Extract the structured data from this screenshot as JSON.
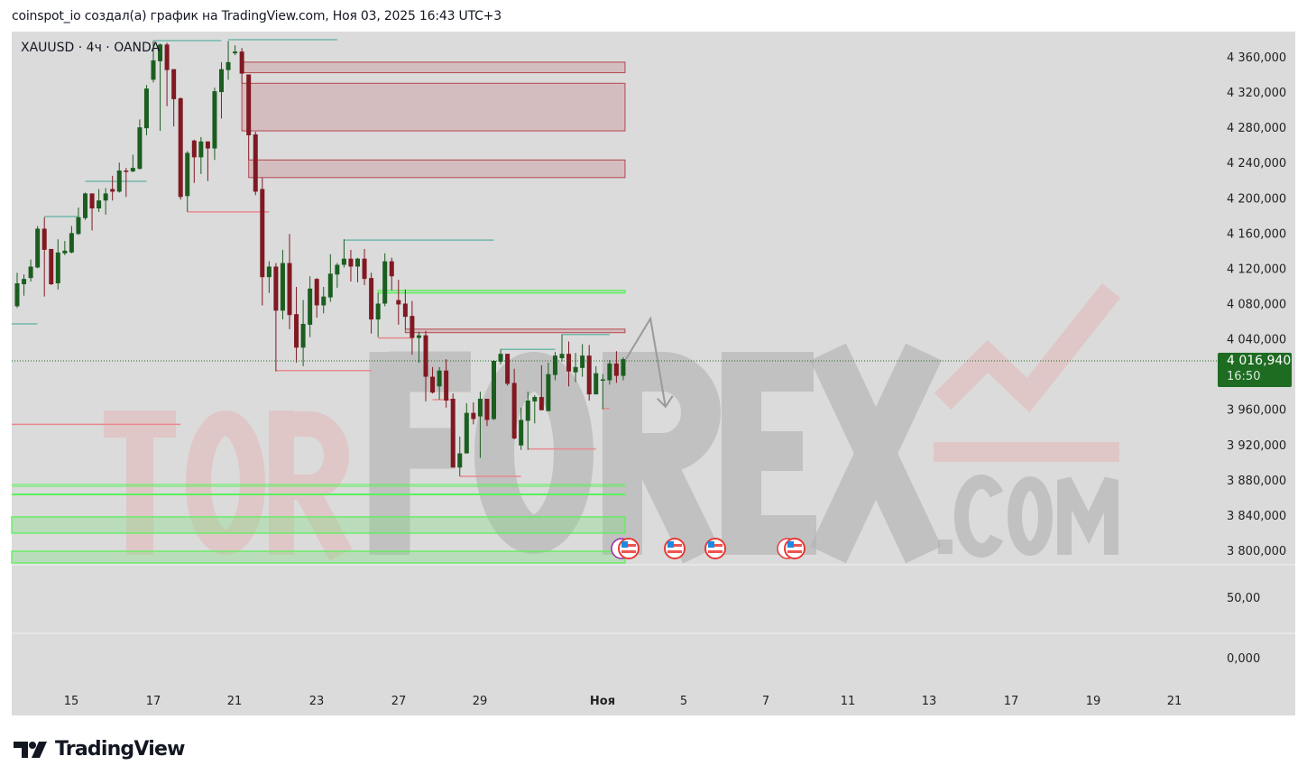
{
  "caption": "coinspot_io создал(а) график на TradingView.com, Ноя 03, 2025 16:43 UTC+3",
  "symbol_label": "XAUUSD · 4ч · OANDA",
  "brand": "TradingView",
  "watermark": {
    "part1": "TOR",
    "part2": "FOREX",
    "part3": ".COM"
  },
  "last_price": {
    "value": "4 016,940",
    "countdown": "16:50",
    "color": "#1e6b22"
  },
  "colors": {
    "up": "#1b5e20",
    "down": "#801922",
    "background": "#dbdbdb",
    "supply_zone": "#b4474f",
    "demand_zone": "#5bf05b",
    "swing_high": "#72b8ac",
    "swing_low": "#e88a8f"
  },
  "chart_data": {
    "type": "candlestick",
    "title": "XAUUSD · 4ч · OANDA",
    "ylim": [
      3780,
      4385
    ],
    "price_ticks": [
      "4 360,000",
      "4 320,000",
      "4 280,000",
      "4 240,000",
      "4 200,000",
      "4 160,000",
      "4 120,000",
      "4 080,000",
      "4 040,000",
      "3 960,000",
      "3 920,000",
      "3 880,000",
      "3 840,000",
      "3 800,000"
    ],
    "price_tick_values": [
      4360,
      4320,
      4280,
      4240,
      4200,
      4160,
      4120,
      4080,
      4040,
      3960,
      3920,
      3880,
      3840,
      3800
    ],
    "lower_pane_ticks": [
      "50,00",
      "0,000"
    ],
    "time_ticks": [
      "15",
      "17",
      "21",
      "23",
      "27",
      "29",
      "Ноя",
      "5",
      "7",
      "11",
      "13",
      "17",
      "19",
      "21"
    ],
    "grid": false,
    "candles_ohlc": [
      [
        4077,
        4115,
        4075,
        4103
      ],
      [
        4102,
        4113,
        4089,
        4108
      ],
      [
        4109,
        4130,
        4105,
        4122
      ],
      [
        4121,
        4168,
        4120,
        4165
      ],
      [
        4165,
        4178,
        4088,
        4141
      ],
      [
        4142,
        4142,
        4101,
        4102
      ],
      [
        4103,
        4153,
        4096,
        4138
      ],
      [
        4137,
        4151,
        4135,
        4140
      ],
      [
        4138,
        4168,
        4137,
        4160
      ],
      [
        4159,
        4189,
        4158,
        4178
      ],
      [
        4177,
        4206,
        4175,
        4205
      ],
      [
        4205,
        4205,
        4163,
        4188
      ],
      [
        4188,
        4210,
        4184,
        4197
      ],
      [
        4197,
        4211,
        4181,
        4205
      ],
      [
        4210,
        4225,
        4197,
        4207
      ],
      [
        4207,
        4240,
        4206,
        4231
      ],
      [
        4231,
        4234,
        4201,
        4230
      ],
      [
        4230,
        4249,
        4229,
        4234
      ],
      [
        4233,
        4289,
        4232,
        4280
      ],
      [
        4279,
        4328,
        4271,
        4324
      ],
      [
        4334,
        4378,
        4331,
        4356
      ],
      [
        4355,
        4375,
        4276,
        4374
      ],
      [
        4374,
        4376,
        4304,
        4345
      ],
      [
        4346,
        4346,
        4281,
        4312
      ],
      [
        4313,
        4314,
        4198,
        4201
      ],
      [
        4202,
        4253,
        4184,
        4251
      ],
      [
        4265,
        4266,
        4217,
        4246
      ],
      [
        4246,
        4269,
        4227,
        4264
      ],
      [
        4264,
        4264,
        4219,
        4256
      ],
      [
        4256,
        4325,
        4243,
        4321
      ],
      [
        4320,
        4354,
        4290,
        4346
      ],
      [
        4345,
        4378,
        4334,
        4354
      ],
      [
        4364,
        4373,
        4362,
        4366
      ],
      [
        4366,
        4370,
        4330,
        4341
      ],
      [
        4340,
        4340,
        4243,
        4271
      ],
      [
        4272,
        4275,
        4203,
        4207
      ],
      [
        4210,
        4223,
        4078,
        4110
      ],
      [
        4110,
        4128,
        4092,
        4122
      ],
      [
        4122,
        4126,
        4003,
        4072
      ],
      [
        4072,
        4141,
        4062,
        4126
      ],
      [
        4126,
        4159,
        4051,
        4067
      ],
      [
        4068,
        4099,
        4013,
        4030
      ],
      [
        4030,
        4084,
        4009,
        4057
      ],
      [
        4056,
        4111,
        4042,
        4097
      ],
      [
        4108,
        4109,
        4064,
        4078
      ],
      [
        4078,
        4099,
        4069,
        4088
      ],
      [
        4087,
        4136,
        4082,
        4114
      ],
      [
        4113,
        4126,
        4098,
        4124
      ],
      [
        4124,
        4153,
        4121,
        4131
      ],
      [
        4131,
        4141,
        4105,
        4122
      ],
      [
        4122,
        4132,
        4104,
        4131
      ],
      [
        4131,
        4142,
        4101,
        4108
      ],
      [
        4109,
        4115,
        4046,
        4062
      ],
      [
        4062,
        4092,
        4042,
        4080
      ],
      [
        4080,
        4137,
        4077,
        4128
      ],
      [
        4128,
        4132,
        4095,
        4111
      ],
      [
        4084,
        4107,
        4056,
        4079
      ],
      [
        4080,
        4096,
        4051,
        4065
      ],
      [
        4066,
        4083,
        4022,
        4041
      ],
      [
        4041,
        4048,
        4013,
        4044
      ],
      [
        4044,
        4049,
        3969,
        3997
      ],
      [
        3997,
        4008,
        3978,
        3979
      ],
      [
        3986,
        4008,
        3971,
        4004
      ],
      [
        4004,
        4017,
        3962,
        3970
      ],
      [
        3972,
        3978,
        3894,
        3894
      ],
      [
        3894,
        3929,
        3884,
        3910
      ],
      [
        3910,
        3967,
        3910,
        3956
      ],
      [
        3956,
        3968,
        3943,
        3949
      ],
      [
        3952,
        3980,
        3905,
        3972
      ],
      [
        3972,
        3972,
        3941,
        3948
      ],
      [
        3949,
        4016,
        3948,
        4015
      ],
      [
        4014,
        4028,
        4011,
        4023
      ],
      [
        4023,
        4023,
        3987,
        3989
      ],
      [
        3990,
        4006,
        3926,
        3927
      ],
      [
        3919,
        3962,
        3914,
        3948
      ],
      [
        3947,
        3980,
        3914,
        3970
      ],
      [
        3969,
        3976,
        3944,
        3974
      ],
      [
        3974,
        4010,
        3959,
        3959
      ],
      [
        3958,
        4013,
        3958,
        4000
      ],
      [
        3999,
        4025,
        3993,
        4021
      ],
      [
        4018,
        4045,
        4014,
        4023
      ],
      [
        4023,
        4037,
        3986,
        4003
      ],
      [
        4002,
        4024,
        3991,
        4008
      ],
      [
        4007,
        4034,
        3997,
        4021
      ],
      [
        4021,
        4033,
        3970,
        3977
      ],
      [
        3977,
        4009,
        3977,
        4001
      ],
      [
        3993,
        4000,
        3960,
        3994
      ],
      [
        3993,
        4016,
        3988,
        4012
      ],
      [
        4012,
        4026,
        3990,
        3998
      ],
      [
        3998,
        4019,
        3993,
        4016.94
      ]
    ],
    "last_price": 4016.94,
    "supply_zones": [
      {
        "top": 4354,
        "bottom": 4342,
        "from_bar": 33,
        "to_bar": 89
      },
      {
        "top": 4330,
        "bottom": 4276,
        "from_bar": 33,
        "to_bar": 89
      },
      {
        "top": 4243,
        "bottom": 4223,
        "from_bar": 34,
        "to_bar": 89
      },
      {
        "top": 4051,
        "bottom": 4047,
        "from_bar": 57,
        "to_bar": 89
      }
    ],
    "demand_zones": [
      {
        "top": 4095,
        "bottom": 4092,
        "from_bar": 53,
        "to_bar": 89
      },
      {
        "top": 3838,
        "bottom": 3819.5,
        "from_bar": -1,
        "to_bar": 89
      },
      {
        "top": 3799,
        "bottom": 3785.7,
        "from_bar": -1,
        "to_bar": 89
      }
    ],
    "demand_lines": [
      {
        "price": 3874.7,
        "from_bar": -1,
        "to_bar": 89
      },
      {
        "price": 3872.7,
        "from_bar": -1,
        "to_bar": 89
      },
      {
        "price": 3863.5,
        "from_bar": -1,
        "to_bar": 89
      }
    ],
    "swing_high_lines": [
      {
        "price": 4378.4,
        "from_bar": 20,
        "to_bar": 30
      },
      {
        "price": 4379.5,
        "from_bar": 31,
        "to_bar": 47
      },
      {
        "price": 4218.7,
        "from_bar": 10,
        "to_bar": 19
      },
      {
        "price": 4178.8,
        "from_bar": 4,
        "to_bar": 9
      },
      {
        "price": 4057,
        "from_bar": -1,
        "to_bar": 3
      },
      {
        "price": 4152,
        "from_bar": 48,
        "to_bar": 70
      },
      {
        "price": 4028,
        "from_bar": 71,
        "to_bar": 79
      },
      {
        "price": 4045,
        "from_bar": 80,
        "to_bar": 87
      }
    ],
    "swing_low_lines": [
      {
        "price": 4184,
        "from_bar": 25,
        "to_bar": 37
      },
      {
        "price": 4004,
        "from_bar": 38,
        "to_bar": 52
      },
      {
        "price": 3943,
        "from_bar": -1,
        "to_bar": 24
      },
      {
        "price": 4041,
        "from_bar": 53,
        "to_bar": 58
      },
      {
        "price": 3971,
        "from_bar": 61,
        "to_bar": 64
      },
      {
        "price": 3884,
        "from_bar": 65,
        "to_bar": 74
      },
      {
        "price": 3915,
        "from_bar": 75,
        "to_bar": 85
      },
      {
        "price": 3961,
        "from_bar": 86,
        "to_bar": 87
      }
    ],
    "forecast_path": [
      {
        "bar": 89.4,
        "price": 4017
      },
      {
        "bar": 93,
        "price": 4063
      },
      {
        "bar": 95.2,
        "price": 3963
      }
    ],
    "event_flags": [
      "us-flag-icon",
      "us-flag-icon",
      "us-flag-icon",
      "us-flag-icon"
    ]
  }
}
